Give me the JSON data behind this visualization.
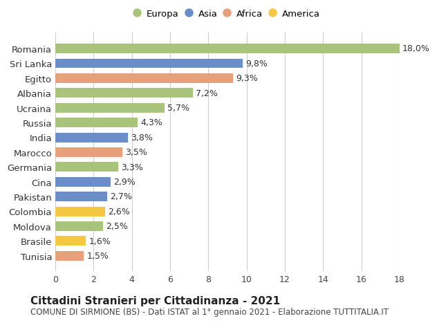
{
  "countries": [
    "Tunisia",
    "Brasile",
    "Moldova",
    "Colombia",
    "Pakistan",
    "Cina",
    "Germania",
    "Marocco",
    "India",
    "Russia",
    "Ucraina",
    "Albania",
    "Egitto",
    "Sri Lanka",
    "Romania"
  ],
  "values": [
    1.5,
    1.6,
    2.5,
    2.6,
    2.7,
    2.9,
    3.3,
    3.5,
    3.8,
    4.3,
    5.7,
    7.2,
    9.3,
    9.8,
    18.0
  ],
  "labels": [
    "1,5%",
    "1,6%",
    "2,5%",
    "2,6%",
    "2,7%",
    "2,9%",
    "3,3%",
    "3,5%",
    "3,8%",
    "4,3%",
    "5,7%",
    "7,2%",
    "9,3%",
    "9,8%",
    "18,0%"
  ],
  "colors": [
    "#e8a07a",
    "#f5c842",
    "#a8c47a",
    "#f5c842",
    "#6a8fc8",
    "#6a8fc8",
    "#a8c47a",
    "#e8a07a",
    "#6a8fc8",
    "#a8c47a",
    "#a8c47a",
    "#a8c47a",
    "#e8a07a",
    "#6a8fc8",
    "#a8c47a"
  ],
  "continent": [
    "Africa",
    "America",
    "Europa",
    "America",
    "Asia",
    "Asia",
    "Europa",
    "Africa",
    "Asia",
    "Europa",
    "Europa",
    "Europa",
    "Africa",
    "Asia",
    "Europa"
  ],
  "legend_labels": [
    "Europa",
    "Asia",
    "Africa",
    "America"
  ],
  "legend_colors": [
    "#a8c47a",
    "#6a8fc8",
    "#e8a07a",
    "#f5c842"
  ],
  "xlim": [
    0,
    18
  ],
  "xticks": [
    0,
    2,
    4,
    6,
    8,
    10,
    12,
    14,
    16,
    18
  ],
  "title": "Cittadini Stranieri per Cittadinanza - 2021",
  "subtitle": "COMUNE DI SIRMIONE (BS) - Dati ISTAT al 1° gennaio 2021 - Elaborazione TUTTITALIA.IT",
  "bg_color": "#ffffff",
  "bar_height": 0.65,
  "label_fontsize": 9,
  "title_fontsize": 11,
  "subtitle_fontsize": 8.5
}
